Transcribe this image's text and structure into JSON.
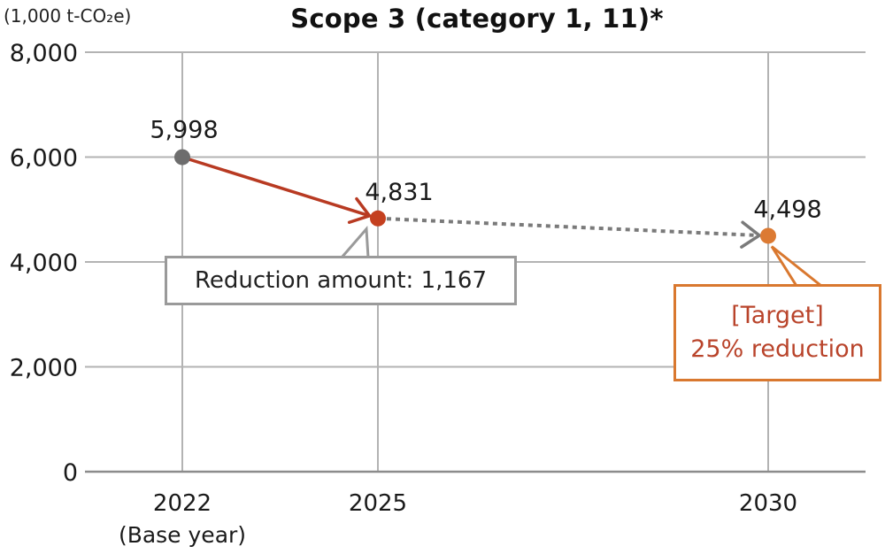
{
  "unit_label": "(1,000 t-CO₂e)",
  "chart_data": {
    "type": "line",
    "title": "Scope 3 (category 1, 11)*",
    "ylabel": "(1,000 t-CO₂e)",
    "xlabel": "",
    "ylim": [
      0,
      8000
    ],
    "yticks": [
      0,
      2000,
      4000,
      6000,
      8000
    ],
    "ytick_labels": [
      "0",
      "2,000",
      "4,000",
      "6,000",
      "8,000"
    ],
    "grid": true,
    "x": [
      {
        "label": "2022",
        "sublabel": "(Base year)",
        "year": 2022
      },
      {
        "label": "2025",
        "sublabel": "",
        "year": 2025
      },
      {
        "label": "2030",
        "sublabel": "",
        "year": 2030
      }
    ],
    "points": [
      {
        "year": 2022,
        "value": 5998,
        "label": "5,998",
        "color": "#6d6d6d"
      },
      {
        "year": 2025,
        "value": 4831,
        "label": "4,831",
        "color": "#c4401f"
      },
      {
        "year": 2030,
        "value": 4498,
        "label": "4,498",
        "color": "#dc7a33"
      }
    ],
    "segments": [
      {
        "from": 2022,
        "to": 2025,
        "style": "solid",
        "color": "#b83a22"
      },
      {
        "from": 2025,
        "to": 2030,
        "style": "dotted",
        "color": "#7a7a7a"
      }
    ]
  },
  "annotations": {
    "reduction": "Reduction amount: 1,167",
    "target_line1": "[Target]",
    "target_line2": "25% reduction"
  },
  "colors": {
    "grid": "#b3b3b3",
    "axis": "#8c8c8c",
    "reduction_border": "#9a9a9a",
    "target_border": "#d9782f",
    "target_text": "#b9442b"
  }
}
